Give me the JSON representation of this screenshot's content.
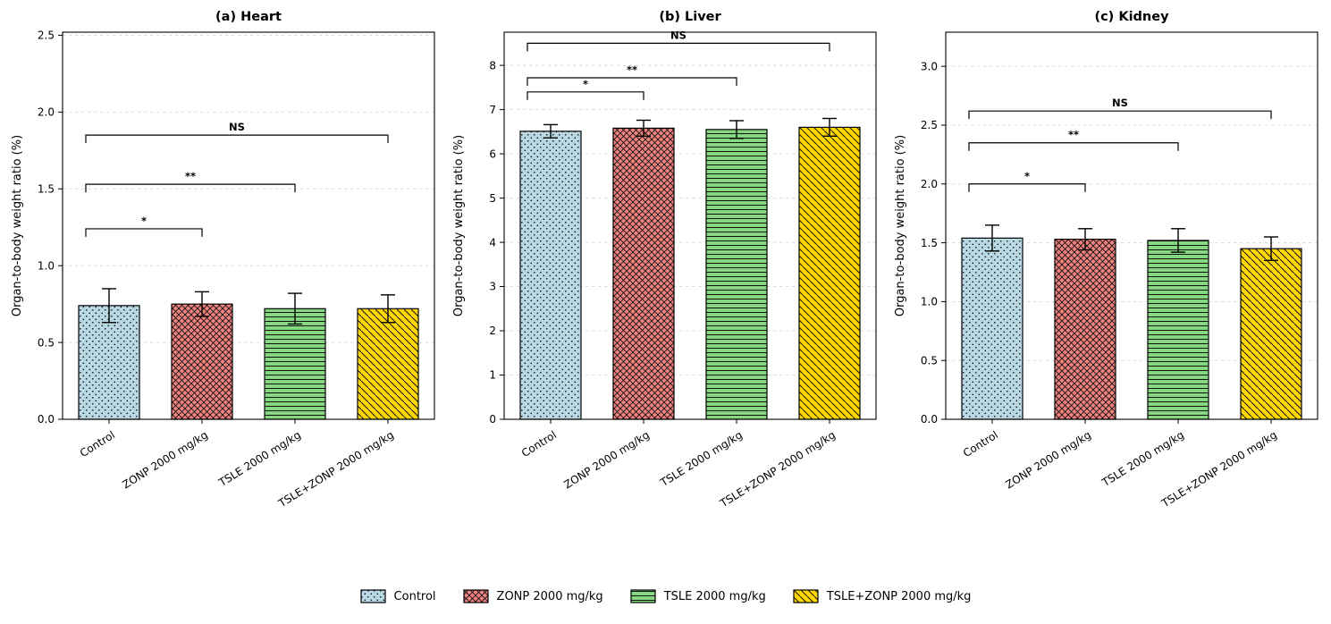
{
  "figure": {
    "background": "#ffffff",
    "grid_color": "#d8d8d8",
    "bar_edge_color": "#000000",
    "hatch_color": "#111111"
  },
  "legend": {
    "items": [
      {
        "label": "Control",
        "color": "#b8d8e3",
        "hatch": "dots"
      },
      {
        "label": "ZONP 2000 mg/kg",
        "color": "#f2827d",
        "hatch": "cross"
      },
      {
        "label": "TSLE 2000 mg/kg",
        "color": "#85d87f",
        "hatch": "horizontal"
      },
      {
        "label": "TSLE+ZONP 2000 mg/kg",
        "color": "#ffd700",
        "hatch": "diagonal"
      }
    ]
  },
  "chart_data": [
    {
      "type": "bar",
      "title": "(a) Heart",
      "ylabel": "Organ-to-body weight ratio (%)",
      "categories": [
        "Control",
        "ZONP 2000 mg/kg",
        "TSLE 2000 mg/kg",
        "TSLE+ZONP 2000 mg/kg"
      ],
      "values": [
        0.74,
        0.75,
        0.72,
        0.72
      ],
      "errors": [
        0.11,
        0.08,
        0.1,
        0.09
      ],
      "ylim": [
        0,
        2.52
      ],
      "ytick_values": [
        0,
        0.5,
        1.0,
        1.5,
        2.0,
        2.5
      ],
      "ytick_labels": [
        "0.0",
        "0.5",
        "1.0",
        "1.5",
        "2.0",
        "2.5"
      ],
      "grid": true,
      "significance": [
        {
          "label": "*",
          "from": 0,
          "to": 1,
          "y": 1.24
        },
        {
          "label": "**",
          "from": 0,
          "to": 2,
          "y": 1.53
        },
        {
          "label": "NS",
          "from": 0,
          "to": 3,
          "y": 1.85
        }
      ]
    },
    {
      "type": "bar",
      "title": "(b) Liver",
      "ylabel": "Organ-to-body weight ratio (%)",
      "categories": [
        "Control",
        "ZONP 2000 mg/kg",
        "TSLE 2000 mg/kg",
        "TSLE+ZONP 2000 mg/kg"
      ],
      "values": [
        6.51,
        6.58,
        6.55,
        6.6
      ],
      "errors": [
        0.15,
        0.18,
        0.2,
        0.2
      ],
      "ylim": [
        0,
        8.75
      ],
      "ytick_values": [
        0,
        1,
        2,
        3,
        4,
        5,
        6,
        7,
        8
      ],
      "ytick_labels": [
        "0",
        "1",
        "2",
        "3",
        "4",
        "5",
        "6",
        "7",
        "8"
      ],
      "grid": true,
      "significance": [
        {
          "label": "*",
          "from": 0,
          "to": 1,
          "y": 7.4
        },
        {
          "label": "**",
          "from": 0,
          "to": 2,
          "y": 7.72
        },
        {
          "label": "NS",
          "from": 0,
          "to": 3,
          "y": 8.5
        }
      ]
    },
    {
      "type": "bar",
      "title": "(c) Kidney",
      "ylabel": "Organ-to-body weight ratio (%)",
      "categories": [
        "Control",
        "ZONP 2000 mg/kg",
        "TSLE 2000 mg/kg",
        "TSLE+ZONP 2000 mg/kg"
      ],
      "values": [
        1.54,
        1.53,
        1.52,
        1.45
      ],
      "errors": [
        0.11,
        0.09,
        0.1,
        0.1
      ],
      "ylim": [
        0,
        3.29
      ],
      "ytick_values": [
        0,
        0.5,
        1.0,
        1.5,
        2.0,
        2.5,
        3.0
      ],
      "ytick_labels": [
        "0.0",
        "0.5",
        "1.0",
        "1.5",
        "2.0",
        "2.5",
        "3.0"
      ],
      "grid": true,
      "significance": [
        {
          "label": "*",
          "from": 0,
          "to": 1,
          "y": 2.0
        },
        {
          "label": "**",
          "from": 0,
          "to": 2,
          "y": 2.35
        },
        {
          "label": "NS",
          "from": 0,
          "to": 3,
          "y": 2.62
        }
      ]
    }
  ]
}
